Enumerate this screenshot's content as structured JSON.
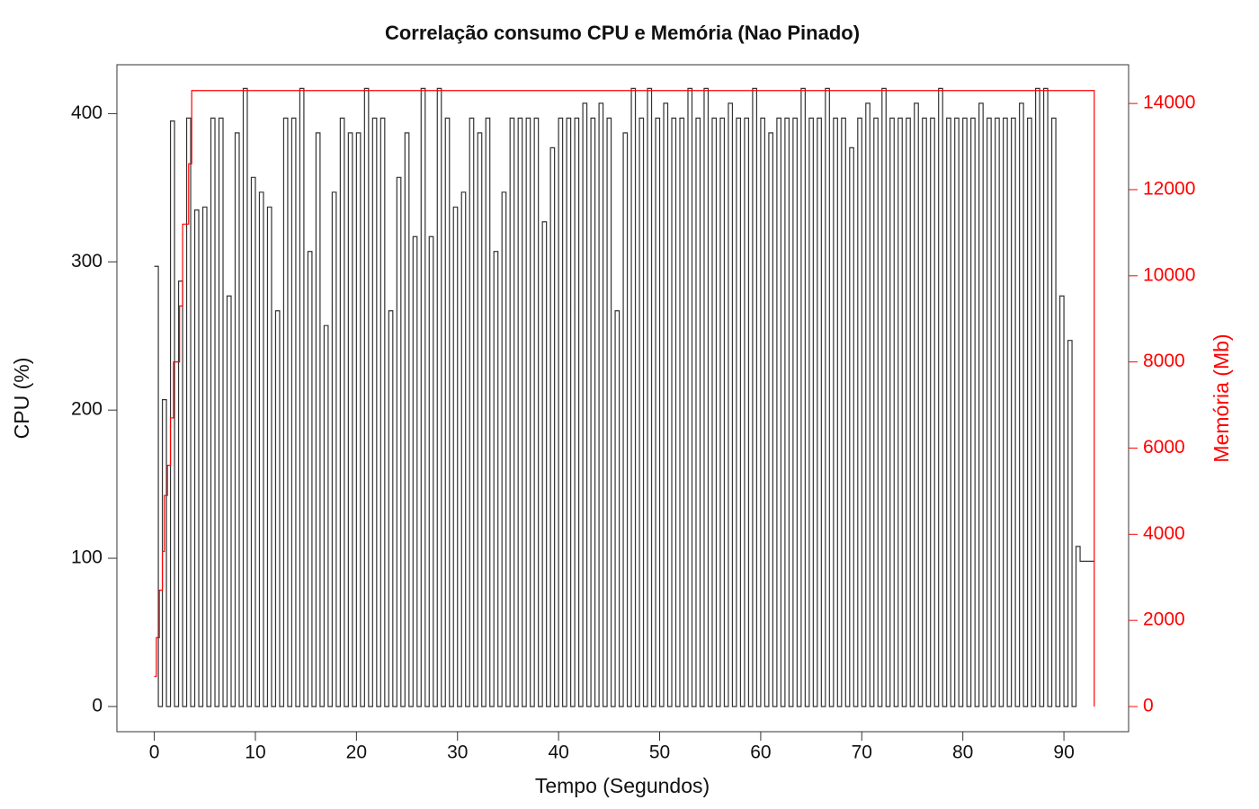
{
  "chart_data": {
    "type": "line",
    "title": "Correlação consumo CPU e Memória (Nao Pinado)",
    "x_label": "Tempo (Segundos)",
    "y_label": "CPU (%)",
    "y2_label": "Memória (Mb)",
    "drawstyle": "steps-post",
    "xlim": [
      -3.7,
      96.4
    ],
    "ylim": [
      -17,
      433
    ],
    "y2lim": [
      -584,
      14900
    ],
    "xticks": [
      0,
      10,
      20,
      30,
      40,
      50,
      60,
      70,
      80,
      90
    ],
    "yticks": [
      0,
      100,
      200,
      300,
      400
    ],
    "y2ticks": [
      0,
      2000,
      4000,
      6000,
      8000,
      10000,
      12000,
      14000
    ],
    "series": [
      {
        "name": "CPU",
        "color": "#333333",
        "axis": "y",
        "x": [
          0,
          0.4,
          0.8,
          1.2,
          1.6,
          2,
          2.4,
          2.8,
          3.2,
          3.6,
          4,
          4.4,
          4.8,
          5.2,
          5.6,
          6,
          6.4,
          6.8,
          7.2,
          7.6,
          8,
          8.4,
          8.8,
          9.2,
          9.6,
          10,
          10.4,
          10.8,
          11.2,
          11.6,
          12,
          12.4,
          12.8,
          13.2,
          13.6,
          14,
          14.4,
          14.8,
          15.2,
          15.6,
          16,
          16.4,
          16.8,
          17.2,
          17.6,
          18,
          18.4,
          18.8,
          19.2,
          19.6,
          20,
          20.4,
          20.8,
          21.2,
          21.6,
          22,
          22.4,
          22.8,
          23.2,
          23.6,
          24,
          24.4,
          24.8,
          25.2,
          25.6,
          26,
          26.4,
          26.8,
          27.2,
          27.6,
          28,
          28.4,
          28.8,
          29.2,
          29.6,
          30,
          30.4,
          30.8,
          31.2,
          31.6,
          32,
          32.4,
          32.8,
          33.2,
          33.6,
          34,
          34.4,
          34.8,
          35.2,
          35.6,
          36,
          36.4,
          36.8,
          37.2,
          37.6,
          38,
          38.4,
          38.8,
          39.2,
          39.6,
          40,
          40.4,
          40.8,
          41.2,
          41.6,
          42,
          42.4,
          42.8,
          43.2,
          43.6,
          44,
          44.4,
          44.8,
          45.2,
          45.6,
          46,
          46.4,
          46.8,
          47.2,
          47.6,
          48,
          48.4,
          48.8,
          49.2,
          49.6,
          50,
          50.4,
          50.8,
          51.2,
          51.6,
          52,
          52.4,
          52.8,
          53.2,
          53.6,
          54,
          54.4,
          54.8,
          55.2,
          55.6,
          56,
          56.4,
          56.8,
          57.2,
          57.6,
          58,
          58.4,
          58.8,
          59.2,
          59.6,
          60,
          60.4,
          60.8,
          61.2,
          61.6,
          62,
          62.4,
          62.8,
          63.2,
          63.6,
          64,
          64.4,
          64.8,
          65.2,
          65.6,
          66,
          66.4,
          66.8,
          67.2,
          67.6,
          68,
          68.4,
          68.8,
          69.2,
          69.6,
          70,
          70.4,
          70.8,
          71.2,
          71.6,
          72,
          72.4,
          72.8,
          73.2,
          73.6,
          74,
          74.4,
          74.8,
          75.2,
          75.6,
          76,
          76.4,
          76.8,
          77.2,
          77.6,
          78,
          78.4,
          78.8,
          79.2,
          79.6,
          80,
          80.4,
          80.8,
          81.2,
          81.6,
          82,
          82.4,
          82.8,
          83.2,
          83.6,
          84,
          84.4,
          84.8,
          85.2,
          85.6,
          86,
          86.4,
          86.8,
          87.2,
          87.6,
          88,
          88.4,
          88.8,
          89.2,
          89.6,
          90,
          90.4,
          90.8,
          91.2,
          91.6,
          93
        ],
        "values": [
          297,
          0,
          207,
          0,
          395,
          0,
          287,
          0,
          397,
          0,
          335,
          0,
          337,
          0,
          397,
          0,
          397,
          0,
          277,
          0,
          387,
          0,
          417,
          0,
          357,
          0,
          347,
          0,
          337,
          0,
          267,
          0,
          397,
          0,
          397,
          0,
          417,
          0,
          307,
          0,
          387,
          0,
          257,
          0,
          347,
          0,
          397,
          0,
          387,
          0,
          387,
          0,
          417,
          0,
          397,
          0,
          397,
          0,
          267,
          0,
          357,
          0,
          387,
          0,
          317,
          0,
          417,
          0,
          317,
          0,
          417,
          0,
          397,
          0,
          337,
          0,
          347,
          0,
          397,
          0,
          387,
          0,
          397,
          0,
          307,
          0,
          347,
          0,
          397,
          0,
          397,
          0,
          397,
          0,
          397,
          0,
          327,
          0,
          377,
          0,
          397,
          0,
          397,
          0,
          397,
          0,
          407,
          0,
          397,
          0,
          407,
          0,
          397,
          0,
          267,
          0,
          387,
          0,
          417,
          0,
          397,
          0,
          417,
          0,
          397,
          0,
          407,
          0,
          397,
          0,
          397,
          0,
          417,
          0,
          397,
          0,
          417,
          0,
          397,
          0,
          397,
          0,
          407,
          0,
          397,
          0,
          397,
          0,
          417,
          0,
          397,
          0,
          387,
          0,
          397,
          0,
          397,
          0,
          397,
          0,
          417,
          0,
          397,
          0,
          397,
          0,
          417,
          0,
          397,
          0,
          397,
          0,
          377,
          0,
          397,
          0,
          407,
          0,
          397,
          0,
          417,
          0,
          397,
          0,
          397,
          0,
          397,
          0,
          407,
          0,
          397,
          0,
          397,
          0,
          417,
          0,
          397,
          0,
          397,
          0,
          397,
          0,
          397,
          0,
          407,
          0,
          397,
          0,
          397,
          0,
          397,
          0,
          397,
          0,
          407,
          0,
          397,
          0,
          417,
          0,
          417,
          0,
          397,
          0,
          277,
          0,
          247,
          0,
          108,
          98,
          98
        ]
      },
      {
        "name": "Memória",
        "color": "#ff0000",
        "axis": "y2",
        "x": [
          0,
          0.2,
          0.5,
          0.8,
          1.0,
          1.3,
          1.6,
          1.9,
          2.2,
          2.5,
          2.8,
          3.1,
          3.4,
          3.7,
          93,
          93
        ],
        "values": [
          700,
          1600,
          2700,
          3600,
          4900,
          5600,
          6700,
          8000,
          8000,
          9300,
          11200,
          11200,
          12600,
          14300,
          14300,
          0
        ]
      }
    ]
  }
}
